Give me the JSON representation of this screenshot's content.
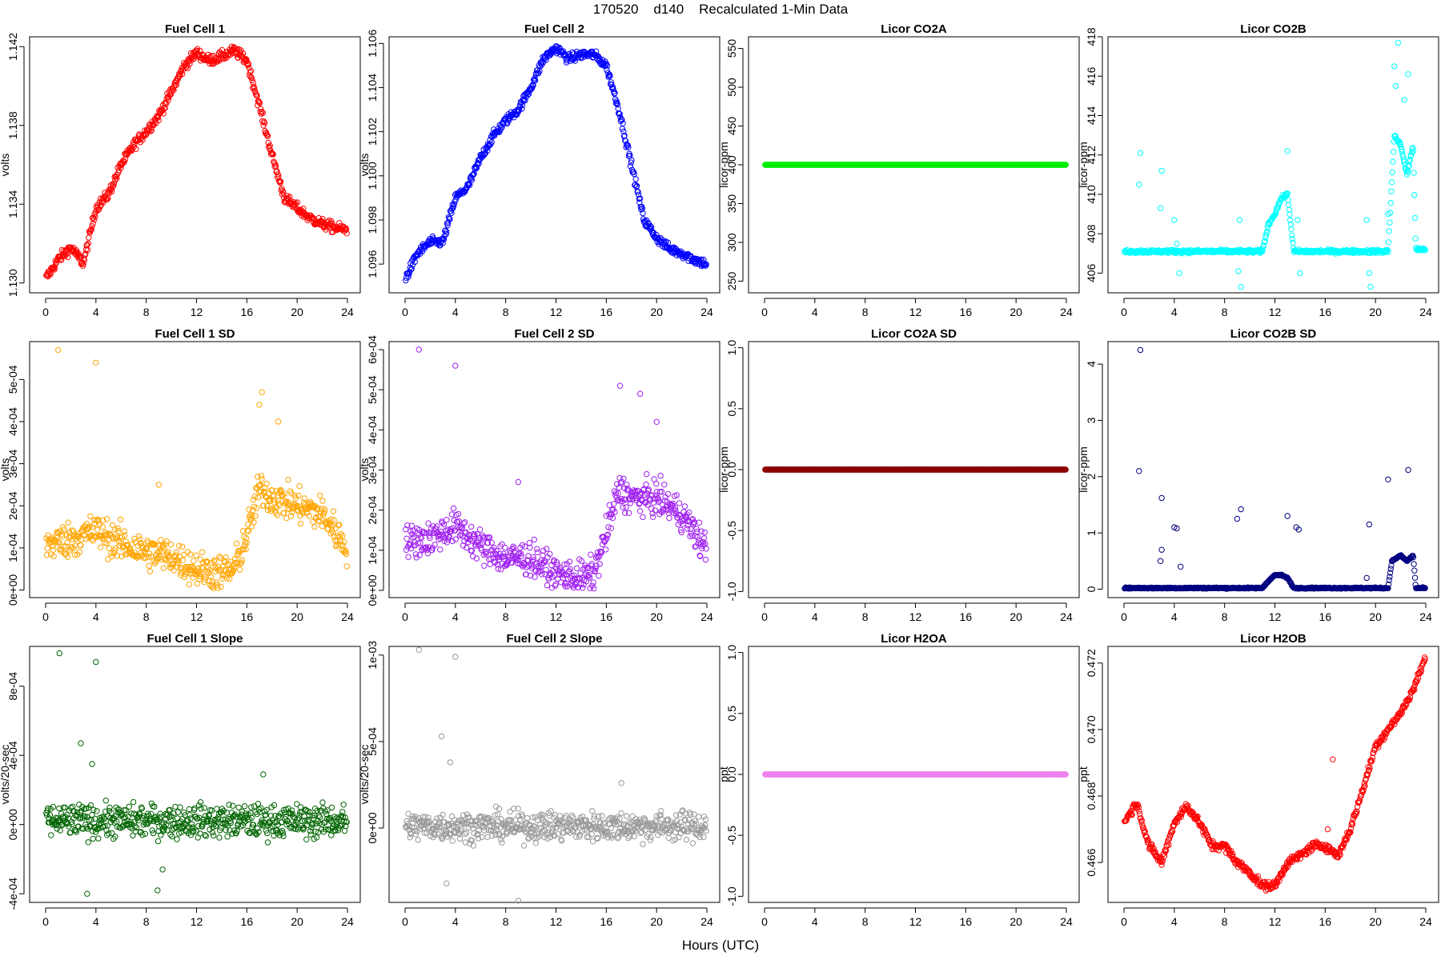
{
  "figure": {
    "title": "170520    d140    Recalculated 1-Min Data",
    "xlabel": "Hours (UTC)"
  },
  "chart_data": [
    {
      "type": "scatter",
      "id": "fc1",
      "title": "Fuel Cell 1",
      "ylabel": "volts",
      "color": "#ff0000",
      "xlim": [
        0,
        24
      ],
      "ylim": [
        1.1295,
        1.1425
      ],
      "xticks": [
        "0",
        "4",
        "8",
        "12",
        "16",
        "20",
        "24"
      ],
      "yticks": [
        1.13,
        1.134,
        1.138,
        1.142
      ],
      "ytick_labels": [
        "1.130",
        "1.134",
        "1.138",
        "1.142"
      ],
      "profile": {
        "x": [
          0,
          1,
          2,
          3,
          4,
          5,
          6,
          7,
          8,
          9,
          10,
          11,
          12,
          13,
          14,
          15,
          16,
          17,
          18,
          19,
          20,
          21,
          22,
          23,
          24
        ],
        "y": [
          1.1302,
          1.1312,
          1.1318,
          1.131,
          1.1338,
          1.1345,
          1.136,
          1.137,
          1.1377,
          1.1385,
          1.1397,
          1.141,
          1.1417,
          1.1413,
          1.1415,
          1.1418,
          1.1413,
          1.139,
          1.1365,
          1.1343,
          1.1338,
          1.1333,
          1.133,
          1.1328,
          1.1327
        ]
      },
      "noise": 0.00025,
      "outliers": []
    },
    {
      "type": "scatter",
      "id": "fc2",
      "title": "Fuel Cell 2",
      "ylabel": "volts",
      "color": "#0000ff",
      "xlim": [
        0,
        24
      ],
      "ylim": [
        1.0947,
        1.1063
      ],
      "xticks": [
        "0",
        "4",
        "8",
        "12",
        "16",
        "20",
        "24"
      ],
      "yticks": [
        1.096,
        1.098,
        1.1,
        1.102,
        1.104,
        1.106
      ],
      "ytick_labels": [
        "1.096",
        "1.098",
        "1.100",
        "1.102",
        "1.104",
        "1.106"
      ],
      "profile": {
        "x": [
          0,
          1,
          2,
          3,
          4,
          5,
          6,
          7,
          8,
          9,
          10,
          11,
          12,
          13,
          14,
          15,
          16,
          17,
          18,
          19,
          20,
          21,
          22,
          23,
          24
        ],
        "y": [
          1.0953,
          1.0965,
          1.097,
          1.097,
          1.099,
          1.0995,
          1.1008,
          1.1018,
          1.1025,
          1.103,
          1.104,
          1.1053,
          1.1058,
          1.1053,
          1.1055,
          1.1055,
          1.105,
          1.103,
          1.1005,
          1.098,
          1.0972,
          1.0967,
          1.0965,
          1.0962,
          1.096
        ]
      },
      "noise": 0.0002,
      "outliers": []
    },
    {
      "type": "scatter",
      "id": "co2a",
      "title": "Licor CO2A",
      "ylabel": "licor-ppm",
      "color": "#00ee00",
      "xlim": [
        0,
        24
      ],
      "ylim": [
        235,
        565
      ],
      "xticks": [
        "0",
        "4",
        "8",
        "12",
        "16",
        "20",
        "24"
      ],
      "yticks": [
        250,
        300,
        350,
        400,
        450,
        500,
        550
      ],
      "ytick_labels": [
        "250",
        "300",
        "350",
        "400",
        "450",
        "500",
        "550"
      ],
      "profile": {
        "x": [
          0,
          24
        ],
        "y": [
          400,
          400
        ]
      },
      "noise": 0,
      "outliers": []
    },
    {
      "type": "scatter",
      "id": "co2b",
      "title": "Licor CO2B",
      "ylabel": "licor-ppm",
      "color": "#00ffff",
      "xlim": [
        0,
        24
      ],
      "ylim": [
        405,
        418
      ],
      "xticks": [
        "0",
        "4",
        "8",
        "12",
        "16",
        "20",
        "24"
      ],
      "yticks": [
        406,
        408,
        410,
        412,
        414,
        416,
        418
      ],
      "ytick_labels": [
        "406",
        "408",
        "410",
        "412",
        "414",
        "416",
        "418"
      ],
      "profile": {
        "x": [
          0,
          11,
          11.5,
          12,
          12.5,
          13,
          13.5,
          21,
          21.5,
          22,
          22.5,
          23,
          23.2,
          24
        ],
        "y": [
          407.1,
          407.1,
          408.5,
          409.0,
          409.8,
          410.0,
          407.1,
          407.1,
          413.0,
          412.5,
          411.0,
          412.5,
          407.2,
          407.2
        ]
      },
      "noise": 0.08,
      "outliers": [
        [
          1.3,
          412.1
        ],
        [
          1.2,
          410.5
        ],
        [
          3.0,
          411.2
        ],
        [
          2.9,
          409.3
        ],
        [
          4.0,
          408.7
        ],
        [
          4.2,
          407.5
        ],
        [
          4.4,
          406.0
        ],
        [
          9.2,
          408.7
        ],
        [
          9.3,
          405.3
        ],
        [
          9.1,
          406.1
        ],
        [
          13.0,
          412.2
        ],
        [
          13.8,
          408.7
        ],
        [
          14.0,
          406.0
        ],
        [
          19.3,
          408.7
        ],
        [
          19.5,
          406.0
        ],
        [
          19.6,
          405.3
        ],
        [
          21.0,
          409.0
        ],
        [
          21.5,
          416.5
        ],
        [
          21.8,
          417.7
        ],
        [
          22.6,
          416.1
        ],
        [
          21.6,
          415.5
        ],
        [
          22.3,
          414.8
        ]
      ]
    },
    {
      "type": "scatter",
      "id": "fc1sd",
      "title": "Fuel Cell 1 SD",
      "ylabel": "volts",
      "color": "#ffa500",
      "xlim": [
        0,
        24
      ],
      "ylim": [
        -1.8e-05,
        0.00059
      ],
      "xticks": [
        "0",
        "4",
        "8",
        "12",
        "16",
        "20",
        "24"
      ],
      "yticks": [
        0,
        0.0001,
        0.0002,
        0.0003,
        0.0004,
        0.0005
      ],
      "ytick_labels": [
        "0e+00",
        "1e-04",
        "2e-04",
        "3e-04",
        "4e-04",
        "5e-04"
      ],
      "profile": {
        "x": [
          0,
          2,
          4,
          6,
          8,
          10,
          12,
          14,
          15,
          16,
          17,
          18,
          20,
          22,
          24
        ],
        "y": [
          0.00011,
          0.00012,
          0.00014,
          0.00011,
          9e-05,
          8e-05,
          5e-05,
          4e-05,
          5e-05,
          0.00013,
          0.00024,
          0.00022,
          0.0002,
          0.00018,
          0.0001
        ]
      },
      "noise": 4e-05,
      "outliers": [
        [
          1.0,
          0.00057
        ],
        [
          4.0,
          0.00054
        ],
        [
          9.0,
          0.00025
        ],
        [
          17.2,
          0.00047
        ],
        [
          17.0,
          0.00044
        ],
        [
          18.5,
          0.0004
        ]
      ]
    },
    {
      "type": "scatter",
      "id": "fc2sd",
      "title": "Fuel Cell 2 SD",
      "ylabel": "volts",
      "color": "#a020f0",
      "xlim": [
        0,
        24
      ],
      "ylim": [
        -1.8e-05,
        0.00062
      ],
      "xticks": [
        "0",
        "4",
        "8",
        "12",
        "16",
        "20",
        "24"
      ],
      "yticks": [
        0,
        0.0001,
        0.0002,
        0.0003,
        0.0004,
        0.0005,
        0.0006
      ],
      "ytick_labels": [
        "0e+00",
        "1e-04",
        "2e-04",
        "3e-04",
        "4e-04",
        "5e-04",
        "6e-04"
      ],
      "profile": {
        "x": [
          0,
          2,
          4,
          6,
          8,
          10,
          12,
          14,
          15,
          16,
          17,
          18,
          20,
          22,
          24
        ],
        "y": [
          0.00012,
          0.00013,
          0.00016,
          0.00011,
          8e-05,
          8e-05,
          4e-05,
          3e-05,
          4e-05,
          0.00014,
          0.00025,
          0.00023,
          0.00023,
          0.00019,
          0.0001
        ]
      },
      "noise": 4e-05,
      "outliers": [
        [
          1.1,
          0.0006
        ],
        [
          4.0,
          0.00056
        ],
        [
          9.0,
          0.00027
        ],
        [
          17.1,
          0.00051
        ],
        [
          18.7,
          0.00049
        ],
        [
          20.0,
          0.00042
        ]
      ]
    },
    {
      "type": "scatter",
      "id": "co2asd",
      "title": "Licor CO2A SD",
      "ylabel": "licor-ppm",
      "color": "#8b0000",
      "xlim": [
        0,
        24
      ],
      "ylim": [
        -1.05,
        1.05
      ],
      "xticks": [
        "0",
        "4",
        "8",
        "12",
        "16",
        "20",
        "24"
      ],
      "yticks": [
        -1.0,
        -0.5,
        0.0,
        0.5,
        1.0
      ],
      "ytick_labels": [
        "-1.0",
        "-0.5",
        "0.0",
        "0.5",
        "1.0"
      ],
      "profile": {
        "x": [
          0,
          24
        ],
        "y": [
          0,
          0
        ]
      },
      "noise": 0,
      "outliers": []
    },
    {
      "type": "scatter",
      "id": "co2bsd",
      "title": "Licor CO2B SD",
      "ylabel": "licor-ppm",
      "color": "#000080",
      "xlim": [
        0,
        24
      ],
      "ylim": [
        -0.15,
        4.4
      ],
      "xticks": [
        "0",
        "4",
        "8",
        "12",
        "16",
        "20",
        "24"
      ],
      "yticks": [
        0,
        1,
        2,
        3,
        4
      ],
      "ytick_labels": [
        "0",
        "1",
        "2",
        "3",
        "4"
      ],
      "profile": {
        "x": [
          0,
          11,
          11.5,
          12,
          12.5,
          13,
          13.5,
          21,
          21.3,
          22,
          22.5,
          23,
          23.2,
          24
        ],
        "y": [
          0.02,
          0.02,
          0.15,
          0.25,
          0.25,
          0.2,
          0.02,
          0.02,
          0.5,
          0.6,
          0.5,
          0.6,
          0.02,
          0.02
        ]
      },
      "noise": 0.01,
      "outliers": [
        [
          1.3,
          4.25
        ],
        [
          1.2,
          2.1
        ],
        [
          3.0,
          1.62
        ],
        [
          4.0,
          1.1
        ],
        [
          4.2,
          1.08
        ],
        [
          3.0,
          0.7
        ],
        [
          2.9,
          0.5
        ],
        [
          4.5,
          0.4
        ],
        [
          9.3,
          1.42
        ],
        [
          9.0,
          1.25
        ],
        [
          13.0,
          1.3
        ],
        [
          13.7,
          1.1
        ],
        [
          13.9,
          1.06
        ],
        [
          19.5,
          1.15
        ],
        [
          21.0,
          1.95
        ],
        [
          22.6,
          2.12
        ],
        [
          19.3,
          0.2
        ]
      ]
    },
    {
      "type": "scatter",
      "id": "fc1slope",
      "title": "Fuel Cell 1 Slope",
      "ylabel": "volts/20-sec",
      "color": "#006400",
      "xlim": [
        0,
        24
      ],
      "ylim": [
        -0.00045,
        0.00103
      ],
      "xticks": [
        "0",
        "4",
        "8",
        "12",
        "16",
        "20",
        "24"
      ],
      "yticks": [
        -0.0004,
        0,
        0.0004,
        0.0008
      ],
      "ytick_labels": [
        "-4e-04",
        "0e+00",
        "4e-04",
        "8e-04"
      ],
      "profile": {
        "x": [
          0,
          24
        ],
        "y": [
          2e-05,
          2e-05
        ]
      },
      "noise": 9e-05,
      "outliers": [
        [
          1.1,
          0.00099
        ],
        [
          4.0,
          0.00094
        ],
        [
          2.8,
          0.00047
        ],
        [
          3.7,
          0.00035
        ],
        [
          3.3,
          -0.0004
        ],
        [
          8.9,
          -0.00038
        ],
        [
          9.3,
          -0.00026
        ],
        [
          17.3,
          0.00029
        ]
      ]
    },
    {
      "type": "scatter",
      "id": "fc2slope",
      "title": "Fuel Cell 2 Slope",
      "ylabel": "volts/20-sec",
      "color": "#999999",
      "xlim": [
        0,
        24
      ],
      "ylim": [
        -0.00043,
        0.00105
      ],
      "xticks": [
        "0",
        "4",
        "8",
        "12",
        "16",
        "20",
        "24"
      ],
      "yticks": [
        0,
        0.0005,
        0.001
      ],
      "ytick_labels": [
        "0e+00",
        "5e-04",
        "1e-03"
      ],
      "profile": {
        "x": [
          0,
          24
        ],
        "y": [
          1e-05,
          1e-05
        ]
      },
      "noise": 8e-05,
      "outliers": [
        [
          1.1,
          0.00103
        ],
        [
          4.0,
          0.00099
        ],
        [
          2.9,
          0.00053
        ],
        [
          3.6,
          0.00038
        ],
        [
          3.3,
          -0.00032
        ],
        [
          9.0,
          -0.00042
        ],
        [
          17.2,
          0.00026
        ]
      ]
    },
    {
      "type": "scatter",
      "id": "h2oa",
      "title": "Licor H2OA",
      "ylabel": "ppt",
      "color": "#ee82ee",
      "xlim": [
        0,
        24
      ],
      "ylim": [
        -1.05,
        1.05
      ],
      "xticks": [
        "0",
        "4",
        "8",
        "12",
        "16",
        "20",
        "24"
      ],
      "yticks": [
        -1.0,
        -0.5,
        0.0,
        0.5,
        1.0
      ],
      "ytick_labels": [
        "-1.0",
        "-0.5",
        "0.0",
        "0.5",
        "1.0"
      ],
      "profile": {
        "x": [
          0,
          24
        ],
        "y": [
          0,
          0
        ]
      },
      "noise": 0,
      "outliers": []
    },
    {
      "type": "scatter",
      "id": "h2ob",
      "title": "Licor H2OB",
      "ylabel": "ppt",
      "color": "#ff0000",
      "xlim": [
        0,
        24
      ],
      "ylim": [
        0.4648,
        0.4725
      ],
      "xticks": [
        "0",
        "4",
        "8",
        "12",
        "16",
        "20",
        "24"
      ],
      "yticks": [
        0.466,
        0.468,
        0.47,
        0.472
      ],
      "ytick_labels": [
        "0.466",
        "0.468",
        "0.470",
        "0.472"
      ],
      "profile": {
        "x": [
          0,
          1,
          2,
          3,
          4,
          5,
          6,
          7,
          8,
          9,
          10,
          11,
          12,
          13,
          14,
          15,
          16,
          17,
          18,
          19,
          20,
          21,
          22,
          23,
          24
        ],
        "y": [
          0.4672,
          0.4678,
          0.4665,
          0.466,
          0.4672,
          0.4677,
          0.4672,
          0.4665,
          0.4665,
          0.466,
          0.4657,
          0.4653,
          0.4653,
          0.466,
          0.4662,
          0.4665,
          0.4665,
          0.4662,
          0.467,
          0.4682,
          0.4695,
          0.47,
          0.4705,
          0.4712,
          0.4722
        ]
      },
      "noise": 0.00012,
      "outliers": [
        [
          16.6,
          0.4691
        ],
        [
          16.2,
          0.467
        ]
      ]
    }
  ]
}
